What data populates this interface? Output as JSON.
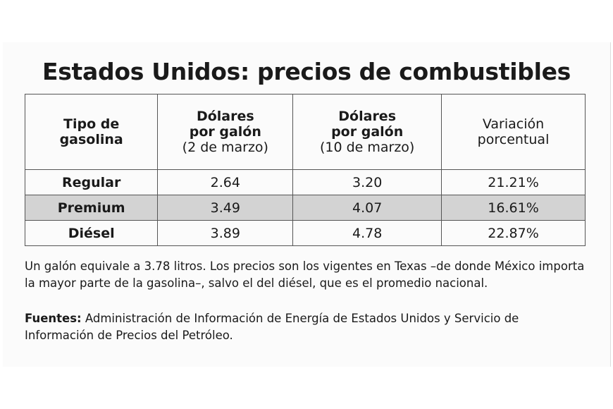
{
  "title": "Estados Unidos: precios de combustibles",
  "table": {
    "header": [
      {
        "title": "Tipo de gasolina"
      },
      {
        "title": "Dólares por galón",
        "note": "(2 de marzo)"
      },
      {
        "title": "Dólares por galón",
        "note": "(10 de marzo)"
      },
      {
        "label": "Variación porcentual"
      }
    ],
    "rows": [
      [
        "Regular",
        "2.64",
        "3.20",
        "21.21%"
      ],
      [
        "Premium",
        "3.49",
        "4.07",
        "16.61%"
      ],
      [
        "Diésel",
        "3.89",
        "4.78",
        "22.87%"
      ]
    ]
  },
  "footnote": "Un galón equivale a 3.78 litros. Los precios son los vigentes en Texas –de donde México importa la mayor parte de la gasolina–, salvo el del diésel, que es el promedio nacional.",
  "sources": {
    "label": "Fuentes:",
    "text": "Administración de Información de Energía de Estados Unidos y Servicio de Información de Precios del Petróleo."
  }
}
